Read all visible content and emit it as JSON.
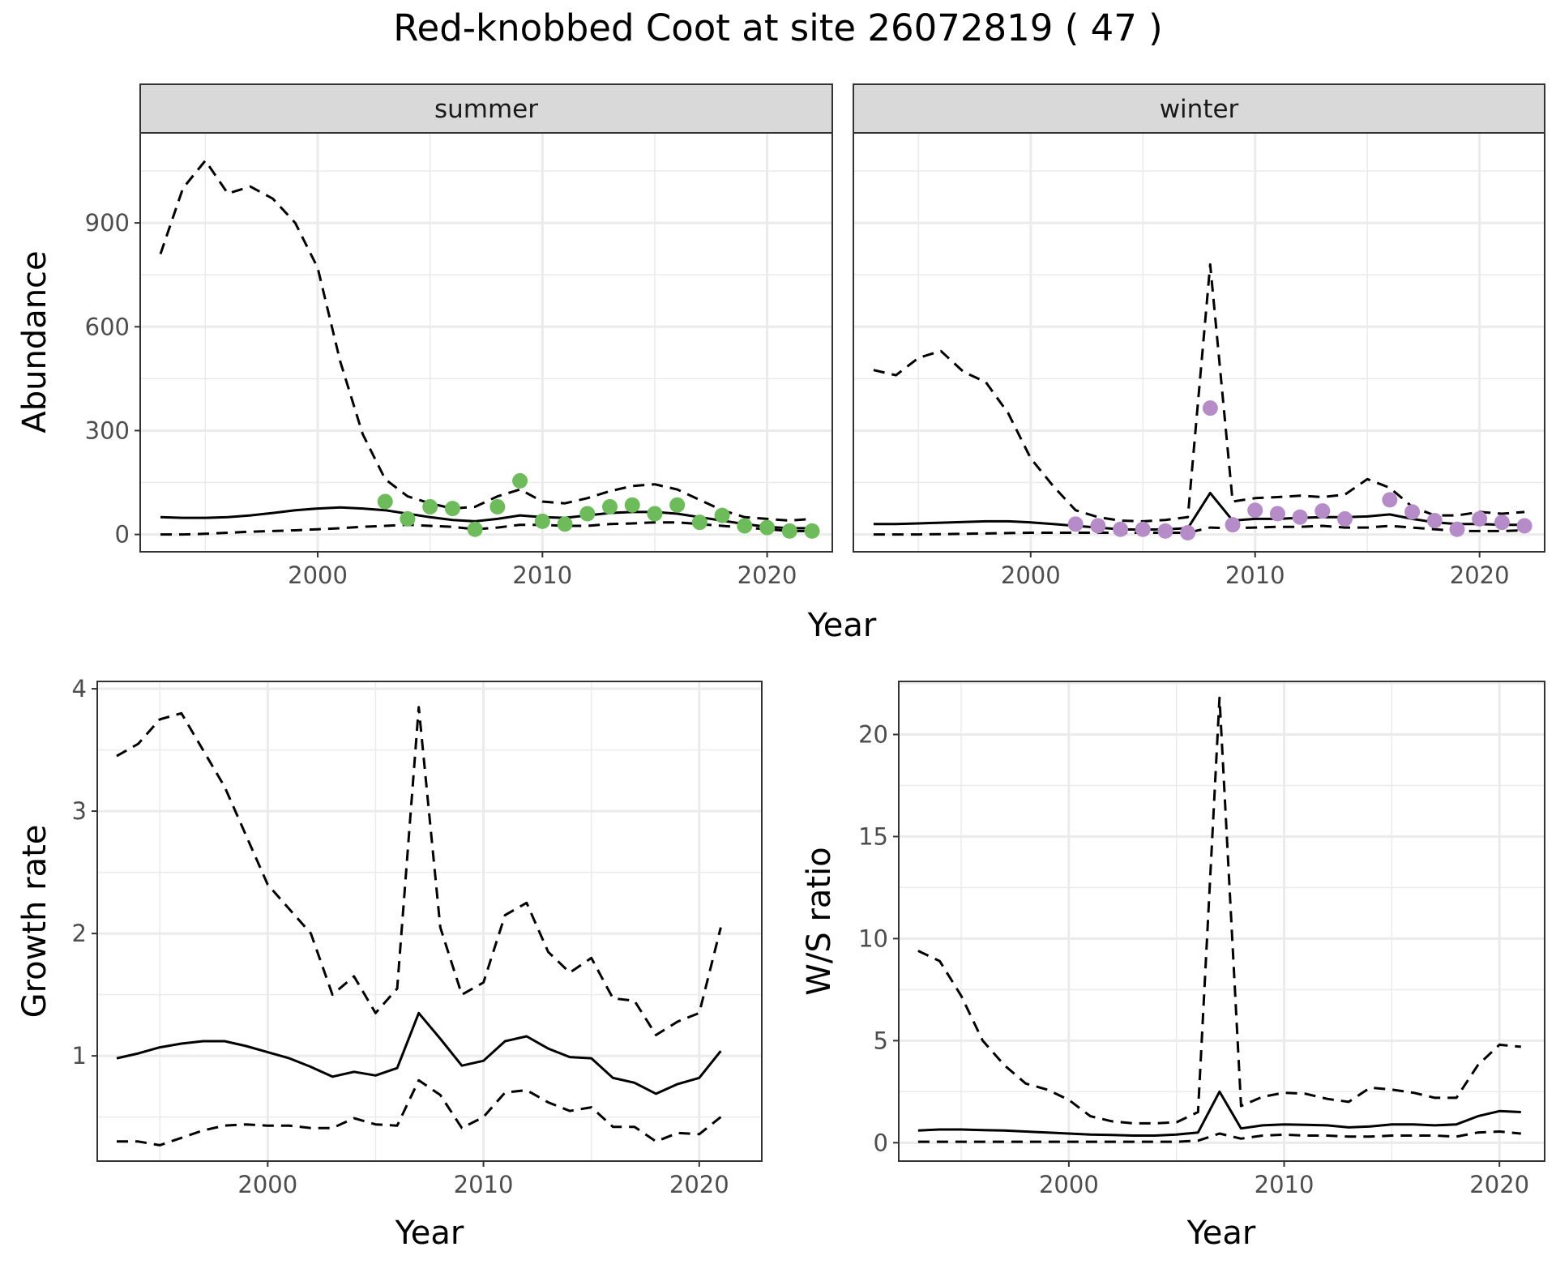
{
  "title": "Red-knobbed Coot at site 26072819 ( 47 )",
  "colors": {
    "summer_points": "#6dbb5a",
    "winter_points": "#b58bc8",
    "line": "#000000",
    "strip_fill": "#d9d9d9",
    "grid": "#ebebeb"
  },
  "chart_data": [
    {
      "id": "abundance",
      "type": "line",
      "ylabel": "Abundance",
      "xlabel": "Year",
      "xlim": [
        1992.1,
        2022.9
      ],
      "ylim": [
        -50,
        1160
      ],
      "x_ticks": [
        2000,
        2010,
        2020
      ],
      "y_ticks": [
        0,
        300,
        600,
        900
      ],
      "panels": [
        {
          "strip": "summer",
          "point_color_key": "summer_points",
          "x": [
            1993,
            1994,
            1995,
            1996,
            1997,
            1998,
            1999,
            2000,
            2001,
            2002,
            2003,
            2004,
            2005,
            2006,
            2007,
            2008,
            2009,
            2010,
            2011,
            2012,
            2013,
            2014,
            2015,
            2016,
            2017,
            2018,
            2019,
            2020,
            2021,
            2022
          ],
          "median": [
            50,
            48,
            48,
            50,
            55,
            62,
            70,
            75,
            78,
            75,
            70,
            60,
            50,
            42,
            38,
            45,
            55,
            50,
            48,
            55,
            62,
            65,
            65,
            60,
            50,
            40,
            30,
            22,
            18,
            18
          ],
          "upper": [
            810,
            1000,
            1080,
            985,
            1005,
            970,
            900,
            770,
            500,
            290,
            160,
            110,
            90,
            75,
            80,
            110,
            130,
            95,
            90,
            105,
            125,
            140,
            145,
            130,
            100,
            70,
            50,
            45,
            40,
            45
          ],
          "lower": [
            0,
            0,
            2,
            5,
            8,
            10,
            12,
            15,
            18,
            22,
            25,
            28,
            25,
            22,
            15,
            20,
            28,
            28,
            25,
            25,
            30,
            32,
            35,
            35,
            30,
            25,
            20,
            15,
            10,
            10
          ],
          "points": {
            "x": [
              2003,
              2004,
              2005,
              2006,
              2007,
              2008,
              2009,
              2010,
              2011,
              2012,
              2013,
              2014,
              2015,
              2016,
              2017,
              2018,
              2019,
              2020,
              2021,
              2022
            ],
            "y": [
              95,
              45,
              80,
              75,
              15,
              80,
              155,
              38,
              30,
              60,
              80,
              85,
              60,
              85,
              35,
              55,
              25,
              20,
              10,
              10
            ]
          }
        },
        {
          "strip": "winter",
          "point_color_key": "winter_points",
          "x": [
            1993,
            1994,
            1995,
            1996,
            1997,
            1998,
            1999,
            2000,
            2001,
            2002,
            2003,
            2004,
            2005,
            2006,
            2007,
            2008,
            2009,
            2010,
            2011,
            2012,
            2013,
            2014,
            2015,
            2016,
            2017,
            2018,
            2019,
            2020,
            2021,
            2022
          ],
          "median": [
            30,
            30,
            32,
            34,
            36,
            38,
            38,
            35,
            30,
            25,
            20,
            15,
            14,
            15,
            18,
            120,
            40,
            45,
            45,
            48,
            50,
            50,
            52,
            58,
            45,
            35,
            30,
            30,
            28,
            28
          ],
          "upper": [
            475,
            460,
            510,
            530,
            470,
            440,
            350,
            220,
            140,
            70,
            50,
            40,
            38,
            42,
            50,
            780,
            95,
            105,
            108,
            112,
            108,
            115,
            160,
            135,
            80,
            55,
            55,
            65,
            60,
            65
          ],
          "lower": [
            0,
            0,
            0,
            1,
            2,
            3,
            4,
            5,
            5,
            5,
            5,
            5,
            5,
            5,
            5,
            20,
            18,
            20,
            22,
            22,
            25,
            20,
            20,
            25,
            20,
            15,
            10,
            10,
            10,
            12
          ],
          "points": {
            "x": [
              2002,
              2003,
              2004,
              2005,
              2006,
              2007,
              2008,
              2009,
              2010,
              2011,
              2012,
              2013,
              2014,
              2016,
              2017,
              2018,
              2019,
              2020,
              2021,
              2022
            ],
            "y": [
              30,
              25,
              15,
              15,
              10,
              5,
              365,
              28,
              70,
              60,
              50,
              68,
              45,
              100,
              65,
              40,
              15,
              45,
              35,
              25
            ]
          }
        }
      ]
    },
    {
      "id": "growth",
      "type": "line",
      "ylabel": "Growth rate",
      "xlabel": "Year",
      "xlim": [
        1992.1,
        2022.9
      ],
      "ylim": [
        0.14,
        4.06
      ],
      "x_ticks": [
        2000,
        2010,
        2020
      ],
      "y_ticks": [
        1,
        2,
        3,
        4
      ],
      "x": [
        1993,
        1994,
        1995,
        1996,
        1997,
        1998,
        1999,
        2000,
        2001,
        2002,
        2003,
        2004,
        2005,
        2006,
        2007,
        2008,
        2009,
        2010,
        2011,
        2012,
        2013,
        2014,
        2015,
        2016,
        2017,
        2018,
        2019,
        2020,
        2021
      ],
      "median": [
        0.98,
        1.02,
        1.07,
        1.1,
        1.12,
        1.12,
        1.08,
        1.03,
        0.98,
        0.91,
        0.83,
        0.87,
        0.84,
        0.9,
        1.35,
        1.14,
        0.92,
        0.96,
        1.12,
        1.16,
        1.06,
        0.99,
        0.98,
        0.82,
        0.78,
        0.69,
        0.77,
        0.82,
        1.04
      ],
      "upper": [
        3.45,
        3.55,
        3.75,
        3.8,
        3.5,
        3.2,
        2.8,
        2.4,
        2.2,
        2.0,
        1.5,
        1.65,
        1.35,
        1.55,
        3.85,
        2.05,
        1.5,
        1.6,
        2.15,
        2.25,
        1.85,
        1.68,
        1.8,
        1.47,
        1.45,
        1.17,
        1.28,
        1.35,
        2.05
      ],
      "lower": [
        0.3,
        0.3,
        0.27,
        0.33,
        0.39,
        0.43,
        0.44,
        0.43,
        0.43,
        0.41,
        0.41,
        0.49,
        0.44,
        0.43,
        0.8,
        0.68,
        0.41,
        0.5,
        0.7,
        0.72,
        0.62,
        0.55,
        0.58,
        0.42,
        0.42,
        0.3,
        0.37,
        0.36,
        0.5
      ]
    },
    {
      "id": "ws_ratio",
      "type": "line",
      "ylabel": "W/S ratio",
      "xlabel": "Year",
      "xlim": [
        1992.1,
        2022.1
      ],
      "ylim": [
        -0.9,
        22.6
      ],
      "x_ticks": [
        2000,
        2010,
        2020
      ],
      "y_ticks": [
        0,
        5,
        10,
        15,
        20
      ],
      "x": [
        1993,
        1994,
        1995,
        1996,
        1997,
        1998,
        1999,
        2000,
        2001,
        2002,
        2003,
        2004,
        2005,
        2006,
        2007,
        2008,
        2009,
        2010,
        2011,
        2012,
        2013,
        2014,
        2015,
        2016,
        2017,
        2018,
        2019,
        2020,
        2021
      ],
      "median": [
        0.6,
        0.65,
        0.65,
        0.62,
        0.6,
        0.55,
        0.5,
        0.45,
        0.4,
        0.38,
        0.35,
        0.35,
        0.4,
        0.5,
        2.5,
        0.7,
        0.85,
        0.9,
        0.88,
        0.85,
        0.75,
        0.8,
        0.9,
        0.9,
        0.85,
        0.9,
        1.3,
        1.55,
        1.5
      ],
      "upper": [
        9.4,
        8.9,
        7.2,
        5.0,
        3.8,
        2.9,
        2.6,
        2.1,
        1.3,
        1.05,
        0.95,
        0.95,
        1.0,
        1.5,
        21.8,
        1.8,
        2.25,
        2.45,
        2.4,
        2.15,
        2.0,
        2.7,
        2.6,
        2.45,
        2.2,
        2.2,
        3.8,
        4.8,
        4.7
      ],
      "lower": [
        0.05,
        0.05,
        0.05,
        0.05,
        0.05,
        0.05,
        0.05,
        0.05,
        0.05,
        0.05,
        0.05,
        0.05,
        0.05,
        0.1,
        0.45,
        0.2,
        0.35,
        0.4,
        0.35,
        0.35,
        0.3,
        0.3,
        0.35,
        0.35,
        0.35,
        0.3,
        0.5,
        0.55,
        0.45
      ]
    }
  ]
}
